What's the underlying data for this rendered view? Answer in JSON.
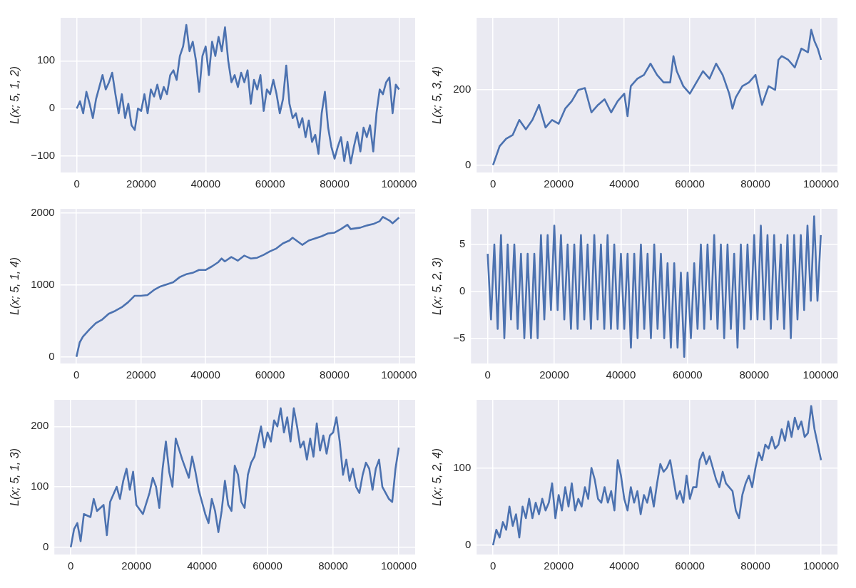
{
  "chart_data": [
    {
      "type": "line",
      "ylabel": "L(x; 5, 1, 2)",
      "grid": true,
      "xlim": [
        -5000,
        105000
      ],
      "xticks": [
        0,
        20000,
        40000,
        60000,
        80000,
        100000
      ],
      "ylim": [
        -134,
        190
      ],
      "yticks": [
        -100,
        0,
        100
      ],
      "x": [
        0,
        1000,
        2000,
        3000,
        4000,
        5000,
        6000,
        7000,
        8000,
        9000,
        10000,
        11000,
        12000,
        13000,
        14000,
        15000,
        16000,
        17000,
        18000,
        19000,
        20000,
        21000,
        22000,
        23000,
        24000,
        25000,
        26000,
        27000,
        28000,
        29000,
        30000,
        31000,
        32000,
        33000,
        34000,
        35000,
        36000,
        37000,
        38000,
        39000,
        40000,
        41000,
        42000,
        43000,
        44000,
        45000,
        46000,
        47000,
        48000,
        49000,
        50000,
        51000,
        52000,
        53000,
        54000,
        55000,
        56000,
        57000,
        58000,
        59000,
        60000,
        61000,
        62000,
        63000,
        64000,
        65000,
        66000,
        67000,
        68000,
        69000,
        70000,
        71000,
        72000,
        73000,
        74000,
        75000,
        76000,
        77000,
        78000,
        79000,
        80000,
        81000,
        82000,
        83000,
        84000,
        85000,
        86000,
        87000,
        88000,
        89000,
        90000,
        91000,
        92000,
        93000,
        94000,
        95000,
        96000,
        97000,
        98000,
        99000,
        100000
      ],
      "series": [
        {
          "color": "#4c72b0",
          "values": [
            0,
            15,
            -10,
            35,
            10,
            -20,
            20,
            45,
            70,
            40,
            55,
            75,
            30,
            -10,
            30,
            -20,
            10,
            -35,
            -45,
            0,
            -5,
            30,
            -10,
            40,
            25,
            50,
            20,
            45,
            30,
            70,
            80,
            60,
            110,
            130,
            175,
            120,
            140,
            100,
            35,
            110,
            130,
            70,
            140,
            110,
            150,
            120,
            170,
            100,
            55,
            70,
            45,
            75,
            55,
            80,
            10,
            60,
            40,
            70,
            -5,
            40,
            30,
            60,
            30,
            -10,
            20,
            90,
            10,
            -20,
            -10,
            -40,
            -20,
            -60,
            -25,
            -70,
            -55,
            -95,
            -10,
            35,
            -40,
            -80,
            -105,
            -80,
            -60,
            -110,
            -70,
            -115,
            -80,
            -50,
            -90,
            -40,
            -60,
            -35,
            -90,
            -10,
            40,
            30,
            55,
            65,
            -10,
            50,
            40
          ]
        }
      ]
    },
    {
      "type": "line",
      "ylabel": "L(x; 5, 3, 4)",
      "grid": true,
      "xlim": [
        -5000,
        105000
      ],
      "xticks": [
        0,
        20000,
        40000,
        60000,
        80000,
        100000
      ],
      "ylim": [
        -20,
        392
      ],
      "yticks": [
        0,
        200
      ],
      "x": [
        0,
        2000,
        4000,
        6000,
        8000,
        10000,
        12000,
        14000,
        16000,
        18000,
        20000,
        22000,
        24000,
        26000,
        28000,
        30000,
        32000,
        34000,
        36000,
        38000,
        40000,
        41000,
        42000,
        44000,
        46000,
        48000,
        50000,
        52000,
        54000,
        55000,
        56000,
        58000,
        60000,
        62000,
        64000,
        66000,
        68000,
        70000,
        72000,
        73000,
        74000,
        76000,
        78000,
        80000,
        82000,
        84000,
        86000,
        87000,
        88000,
        90000,
        92000,
        94000,
        96000,
        97000,
        98000,
        99000,
        100000
      ],
      "series": [
        {
          "color": "#4c72b0",
          "values": [
            0,
            50,
            70,
            80,
            120,
            95,
            120,
            160,
            100,
            120,
            110,
            150,
            170,
            200,
            205,
            140,
            160,
            175,
            140,
            170,
            190,
            130,
            210,
            230,
            240,
            270,
            240,
            220,
            220,
            290,
            250,
            210,
            190,
            220,
            250,
            230,
            270,
            240,
            190,
            150,
            180,
            210,
            220,
            240,
            160,
            210,
            200,
            280,
            290,
            280,
            260,
            310,
            300,
            360,
            330,
            310,
            280
          ]
        }
      ]
    },
    {
      "type": "line",
      "ylabel": "L(x; 5, 1, 4)",
      "grid": true,
      "xlim": [
        -5000,
        105000
      ],
      "xticks": [
        0,
        20000,
        40000,
        60000,
        80000,
        100000
      ],
      "ylim": [
        -93,
        2062
      ],
      "yticks": [
        0,
        1000,
        2000
      ],
      "x": [
        0,
        1000,
        2000,
        4000,
        6000,
        8000,
        10000,
        12000,
        14000,
        16000,
        18000,
        20000,
        22000,
        24000,
        26000,
        28000,
        30000,
        32000,
        34000,
        36000,
        38000,
        40000,
        42000,
        44000,
        45000,
        46000,
        48000,
        50000,
        52000,
        54000,
        56000,
        58000,
        60000,
        62000,
        64000,
        66000,
        67000,
        70000,
        72000,
        74000,
        76000,
        78000,
        80000,
        82000,
        84000,
        85000,
        88000,
        90000,
        92000,
        94000,
        95000,
        97000,
        98000,
        100000
      ],
      "series": [
        {
          "color": "#4c72b0",
          "values": [
            0,
            200,
            280,
            380,
            470,
            520,
            600,
            640,
            690,
            760,
            850,
            850,
            860,
            930,
            980,
            1010,
            1040,
            1110,
            1150,
            1170,
            1210,
            1210,
            1260,
            1320,
            1370,
            1330,
            1390,
            1340,
            1410,
            1370,
            1380,
            1420,
            1470,
            1510,
            1580,
            1620,
            1660,
            1560,
            1620,
            1650,
            1680,
            1720,
            1730,
            1780,
            1840,
            1780,
            1800,
            1830,
            1850,
            1890,
            1950,
            1900,
            1860,
            1940
          ]
        }
      ]
    },
    {
      "type": "line",
      "ylabel": "L(x; 5, 2, 3)",
      "grid": true,
      "xlim": [
        -5000,
        105000
      ],
      "xticks": [
        0,
        20000,
        40000,
        60000,
        80000,
        100000
      ],
      "ylim": [
        -7.7,
        8.8
      ],
      "yticks": [
        -5,
        0,
        5
      ],
      "x": [
        0,
        1000,
        2000,
        3000,
        4000,
        5000,
        6000,
        7000,
        8000,
        9000,
        10000,
        11000,
        12000,
        13000,
        14000,
        15000,
        16000,
        17000,
        18000,
        19000,
        20000,
        21000,
        22000,
        23000,
        24000,
        25000,
        26000,
        27000,
        28000,
        29000,
        30000,
        31000,
        32000,
        33000,
        34000,
        35000,
        36000,
        37000,
        38000,
        39000,
        40000,
        41000,
        42000,
        43000,
        44000,
        45000,
        46000,
        47000,
        48000,
        49000,
        50000,
        51000,
        52000,
        53000,
        54000,
        55000,
        56000,
        57000,
        58000,
        59000,
        60000,
        61000,
        62000,
        63000,
        64000,
        65000,
        66000,
        67000,
        68000,
        69000,
        70000,
        71000,
        72000,
        73000,
        74000,
        75000,
        76000,
        77000,
        78000,
        79000,
        80000,
        81000,
        82000,
        83000,
        84000,
        85000,
        86000,
        87000,
        88000,
        89000,
        90000,
        91000,
        92000,
        93000,
        94000,
        95000,
        96000,
        97000,
        98000,
        99000,
        100000
      ],
      "series": [
        {
          "color": "#4c72b0",
          "values": [
            4,
            -3,
            5,
            -4,
            6,
            -5,
            5,
            -3,
            5,
            -4,
            4,
            -5,
            4,
            -5,
            4,
            -5,
            6,
            -3,
            6,
            -2,
            7,
            -2,
            6,
            -3,
            5,
            -4,
            5,
            -4,
            6,
            -3,
            5,
            -4,
            6,
            -3,
            5,
            -4,
            6,
            -4,
            5,
            -4,
            4,
            -4,
            4,
            -6,
            4,
            -5,
            5,
            -4,
            4,
            -5,
            5,
            -4,
            4,
            -5,
            3,
            -6,
            3,
            -6,
            2,
            -7,
            2,
            -5,
            3,
            -4,
            5,
            -4,
            5,
            -3,
            6,
            -4,
            5,
            -5,
            5,
            -4,
            4,
            -6,
            5,
            -4,
            5,
            -3,
            6,
            -3,
            7,
            -3,
            6,
            -4,
            6,
            -3,
            5,
            -4,
            6,
            -5,
            6,
            -3,
            6,
            -2,
            7,
            -1,
            8,
            -1,
            6
          ]
        }
      ]
    },
    {
      "type": "line",
      "ylabel": "L(x; 5, 1, 3)",
      "grid": true,
      "xlim": [
        -5000,
        105000
      ],
      "xticks": [
        0,
        20000,
        40000,
        60000,
        80000,
        100000
      ],
      "ylim": [
        -12,
        244
      ],
      "yticks": [
        0,
        100,
        200
      ],
      "x": [
        0,
        1000,
        2000,
        3000,
        4000,
        6000,
        7000,
        8000,
        10000,
        11000,
        12000,
        14000,
        15000,
        16000,
        17000,
        18000,
        19000,
        20000,
        22000,
        24000,
        25000,
        26000,
        27000,
        28000,
        29000,
        30000,
        31000,
        32000,
        34000,
        36000,
        37000,
        38000,
        39000,
        40000,
        41000,
        42000,
        43000,
        44000,
        45000,
        46000,
        47000,
        48000,
        49000,
        50000,
        51000,
        52000,
        53000,
        54000,
        55000,
        56000,
        58000,
        59000,
        60000,
        61000,
        62000,
        63000,
        64000,
        65000,
        66000,
        67000,
        68000,
        69000,
        70000,
        71000,
        72000,
        73000,
        74000,
        75000,
        76000,
        77000,
        78000,
        79000,
        80000,
        81000,
        82000,
        83000,
        84000,
        85000,
        86000,
        87000,
        88000,
        89000,
        90000,
        91000,
        92000,
        93000,
        94000,
        95000,
        96000,
        97000,
        98000,
        99000,
        100000
      ],
      "series": [
        {
          "color": "#4c72b0",
          "values": [
            0,
            30,
            40,
            10,
            55,
            50,
            80,
            60,
            70,
            20,
            75,
            100,
            80,
            110,
            130,
            95,
            125,
            70,
            55,
            90,
            115,
            100,
            65,
            130,
            175,
            125,
            100,
            180,
            145,
            115,
            150,
            125,
            95,
            75,
            55,
            40,
            80,
            60,
            25,
            60,
            110,
            70,
            60,
            135,
            120,
            75,
            65,
            120,
            140,
            150,
            200,
            165,
            190,
            175,
            210,
            200,
            230,
            190,
            215,
            175,
            230,
            200,
            165,
            175,
            145,
            180,
            150,
            205,
            160,
            185,
            155,
            185,
            190,
            215,
            175,
            120,
            145,
            110,
            130,
            100,
            90,
            120,
            140,
            130,
            95,
            130,
            145,
            100,
            90,
            80,
            75,
            130,
            165
          ]
        }
      ]
    },
    {
      "type": "line",
      "ylabel": "L(x; 5, 2, 4)",
      "grid": true,
      "xlim": [
        -5000,
        105000
      ],
      "xticks": [
        0,
        20000,
        40000,
        60000,
        80000,
        100000
      ],
      "ylim": [
        -12,
        188
      ],
      "yticks": [
        0,
        100
      ],
      "x": [
        0,
        1000,
        2000,
        3000,
        4000,
        5000,
        6000,
        7000,
        8000,
        9000,
        10000,
        11000,
        12000,
        13000,
        14000,
        15000,
        16000,
        17000,
        18000,
        19000,
        20000,
        21000,
        22000,
        23000,
        24000,
        25000,
        26000,
        27000,
        28000,
        29000,
        30000,
        31000,
        32000,
        33000,
        34000,
        35000,
        36000,
        37000,
        38000,
        39000,
        40000,
        41000,
        42000,
        43000,
        44000,
        45000,
        46000,
        47000,
        48000,
        49000,
        50000,
        51000,
        52000,
        53000,
        54000,
        55000,
        56000,
        57000,
        58000,
        59000,
        60000,
        61000,
        62000,
        63000,
        64000,
        65000,
        66000,
        67000,
        68000,
        69000,
        70000,
        71000,
        72000,
        73000,
        74000,
        75000,
        76000,
        77000,
        78000,
        79000,
        80000,
        81000,
        82000,
        83000,
        84000,
        85000,
        86000,
        87000,
        88000,
        89000,
        90000,
        91000,
        92000,
        93000,
        94000,
        95000,
        96000,
        97000,
        98000,
        99000,
        100000
      ],
      "series": [
        {
          "color": "#4c72b0",
          "values": [
            0,
            20,
            10,
            30,
            20,
            50,
            25,
            40,
            10,
            50,
            35,
            60,
            35,
            55,
            40,
            60,
            45,
            55,
            80,
            35,
            65,
            45,
            75,
            50,
            80,
            45,
            60,
            50,
            75,
            60,
            100,
            85,
            60,
            55,
            75,
            55,
            70,
            45,
            110,
            90,
            60,
            45,
            75,
            55,
            70,
            40,
            65,
            55,
            75,
            50,
            80,
            105,
            95,
            100,
            110,
            85,
            60,
            70,
            55,
            90,
            60,
            75,
            75,
            110,
            120,
            105,
            115,
            100,
            85,
            75,
            95,
            80,
            75,
            70,
            45,
            35,
            65,
            80,
            90,
            75,
            100,
            120,
            110,
            130,
            125,
            140,
            125,
            130,
            150,
            135,
            160,
            140,
            165,
            150,
            160,
            140,
            145,
            180,
            150,
            130,
            110
          ]
        }
      ]
    }
  ]
}
